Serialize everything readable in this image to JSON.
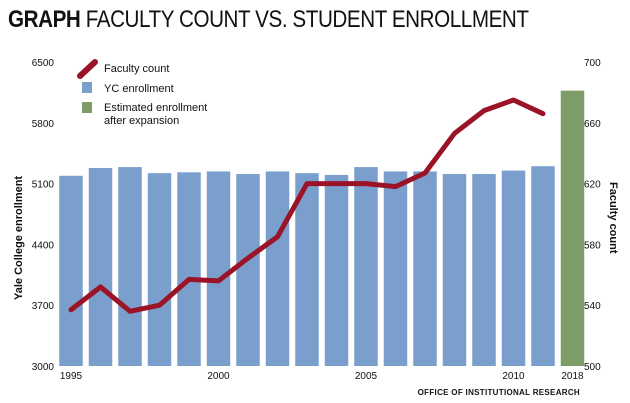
{
  "title": {
    "keyword": "GRAPH",
    "text": "FACULTY COUNT VS. STUDENT ENROLLMENT"
  },
  "source": "OFFICE OF INSTITUTIONAL RESEARCH",
  "colors": {
    "enrollment": "#7a9fcc",
    "faculty": "#9b1326",
    "estimated": "#7d9c67"
  },
  "chart_data": {
    "type": "bar+line",
    "title": "FACULTY COUNT VS. STUDENT ENROLLMENT",
    "ylabel_left": "Yale College enrollment",
    "ylabel_right": "Faculty count",
    "ylim_left": [
      3000,
      6500
    ],
    "ylim_right": [
      500,
      700
    ],
    "yticks_left": [
      3000,
      3700,
      4400,
      5100,
      5800,
      6500
    ],
    "yticks_right": [
      500,
      540,
      580,
      620,
      660,
      700
    ],
    "x": [
      1995,
      1996,
      1997,
      1998,
      1999,
      2000,
      2001,
      2002,
      2003,
      2004,
      2005,
      2006,
      2007,
      2008,
      2009,
      2010,
      2011
    ],
    "xtick_labels": [
      "1995",
      "2000",
      "2005",
      "2010",
      "2018"
    ],
    "legend": [
      "Faculty count",
      "YC enrollment",
      "Estimated enrollment after expansion"
    ],
    "legend_position": "top-left",
    "grid": false,
    "series": [
      {
        "name": "YC enrollment",
        "type": "bar",
        "axis": "left",
        "values": [
          5190,
          5280,
          5290,
          5220,
          5230,
          5240,
          5210,
          5240,
          5220,
          5200,
          5290,
          5240,
          5240,
          5210,
          5210,
          5250,
          5300
        ]
      },
      {
        "name": "Estimated enrollment after expansion",
        "type": "bar",
        "axis": "left",
        "x": [
          2018
        ],
        "values": [
          6170
        ]
      },
      {
        "name": "Faculty count",
        "type": "line",
        "axis": "right",
        "values": [
          537,
          552,
          536,
          540,
          557,
          556,
          571,
          585,
          620,
          620,
          620,
          618,
          627,
          653,
          668,
          675,
          666
        ]
      }
    ]
  }
}
